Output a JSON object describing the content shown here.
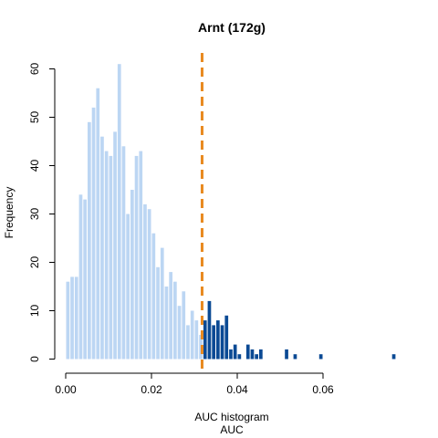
{
  "chart_data": {
    "type": "bar",
    "title": "Arnt (172g)",
    "xlabel": "AUC histogram",
    "xlabel_sub": "AUC",
    "ylabel": "Frequency",
    "xlim": [
      0,
      0.078
    ],
    "ylim": [
      0,
      62
    ],
    "x_ticks": [
      0.0,
      0.02,
      0.04,
      0.06
    ],
    "x_tick_labels": [
      "0.00",
      "0.02",
      "0.04",
      "0.06"
    ],
    "y_ticks": [
      0,
      10,
      20,
      30,
      40,
      50,
      60
    ],
    "y_tick_labels": [
      "0",
      "10",
      "20",
      "30",
      "40",
      "50",
      "60"
    ],
    "bin_width": 0.001,
    "bins_start": 0,
    "counts": [
      16,
      17,
      17,
      34,
      33,
      49,
      52,
      56,
      46,
      43,
      42,
      47,
      61,
      44,
      30,
      35,
      42,
      43,
      32,
      31,
      26,
      19,
      23,
      15,
      18,
      16,
      11,
      14,
      7,
      10,
      8,
      5,
      8,
      12,
      7,
      8,
      7,
      9,
      2,
      3,
      1,
      0,
      3,
      2,
      1,
      2,
      0,
      0,
      0,
      0,
      0,
      2,
      0,
      1,
      0,
      0,
      0,
      0,
      0,
      1,
      0,
      0,
      0,
      0,
      0,
      0,
      0,
      0,
      0,
      0,
      0,
      0,
      0,
      0,
      0,
      0,
      1
    ],
    "threshold": 0.0318,
    "threshold_color": "#e8891f",
    "bar_color_below": "#bcd6f3",
    "bar_color_above": "#0b4a94",
    "grid": false,
    "legend": "none"
  }
}
